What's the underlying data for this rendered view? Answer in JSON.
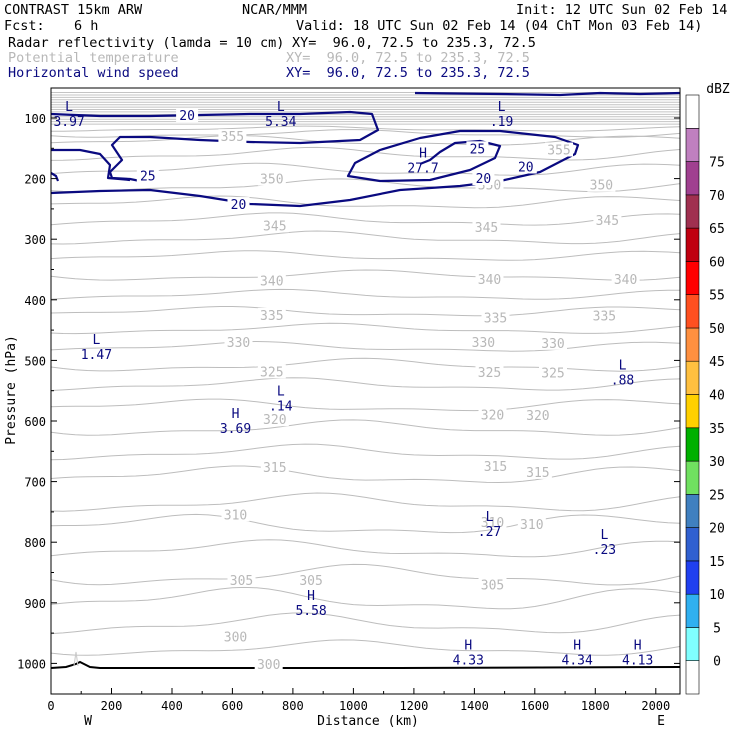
{
  "header": {
    "model": "CONTRAST 15km ARW",
    "center": "NCAR/MMM",
    "init": "Init: 12 UTC Sun 02 Feb 14",
    "fcst_label": "Fcst:",
    "fcst_value": "6 h",
    "valid": "Valid: 18 UTC Sun 02 Feb 14 (04 ChT Mon 03 Feb 14)",
    "fields": [
      {
        "name": "Radar reflectivity (lamda = 10 cm)",
        "xy": "XY=  96.0, 72.5 to 235.3, 72.5",
        "color": "#000000"
      },
      {
        "name": "Potential temperature",
        "xy": "XY=  96.0, 72.5 to 235.3, 72.5",
        "color": "#b8b8b8"
      },
      {
        "name": "Horizontal wind speed",
        "xy": "XY=  96.0, 72.5 to 235.3, 72.5",
        "color": "#0a0a80"
      }
    ]
  },
  "chart_data": {
    "type": "contour-cross-section",
    "xlabel": "Distance (km)",
    "ylabel": "Pressure (hPa)",
    "xlim": [
      0,
      2080
    ],
    "ylim_hpa": [
      1050,
      50
    ],
    "x_ticks": [
      0,
      200,
      400,
      600,
      800,
      1000,
      1200,
      1400,
      1600,
      1800,
      2000
    ],
    "y_ticks": [
      100,
      200,
      300,
      400,
      500,
      600,
      700,
      800,
      900,
      1000
    ],
    "x_end_labels": {
      "left": "W",
      "right": "E"
    },
    "theta_labels": [
      {
        "v": 355,
        "x": 600,
        "p": 130
      },
      {
        "v": 355,
        "x": 1680,
        "p": 152
      },
      {
        "v": 350,
        "x": 730,
        "p": 200
      },
      {
        "v": 350,
        "x": 1450,
        "p": 210
      },
      {
        "v": 350,
        "x": 1820,
        "p": 210
      },
      {
        "v": 345,
        "x": 740,
        "p": 277
      },
      {
        "v": 345,
        "x": 1440,
        "p": 280
      },
      {
        "v": 345,
        "x": 1840,
        "p": 268
      },
      {
        "v": 340,
        "x": 730,
        "p": 368
      },
      {
        "v": 340,
        "x": 1450,
        "p": 366
      },
      {
        "v": 340,
        "x": 1900,
        "p": 366
      },
      {
        "v": 335,
        "x": 730,
        "p": 425
      },
      {
        "v": 335,
        "x": 1470,
        "p": 429
      },
      {
        "v": 335,
        "x": 1830,
        "p": 426
      },
      {
        "v": 330,
        "x": 620,
        "p": 470
      },
      {
        "v": 330,
        "x": 1430,
        "p": 470
      },
      {
        "v": 330,
        "x": 1660,
        "p": 471
      },
      {
        "v": 325,
        "x": 730,
        "p": 518
      },
      {
        "v": 325,
        "x": 1450,
        "p": 519
      },
      {
        "v": 325,
        "x": 1660,
        "p": 520
      },
      {
        "v": 320,
        "x": 740,
        "p": 597
      },
      {
        "v": 320,
        "x": 1460,
        "p": 589
      },
      {
        "v": 320,
        "x": 1610,
        "p": 590
      },
      {
        "v": 315,
        "x": 740,
        "p": 676
      },
      {
        "v": 315,
        "x": 1470,
        "p": 674
      },
      {
        "v": 315,
        "x": 1610,
        "p": 684
      },
      {
        "v": 310,
        "x": 610,
        "p": 754
      },
      {
        "v": 310,
        "x": 1460,
        "p": 767
      },
      {
        "v": 310,
        "x": 1590,
        "p": 770
      },
      {
        "v": 305,
        "x": 630,
        "p": 862
      },
      {
        "v": 305,
        "x": 860,
        "p": 862
      },
      {
        "v": 305,
        "x": 1460,
        "p": 870
      },
      {
        "v": 300,
        "x": 610,
        "p": 956
      },
      {
        "v": 300,
        "x": 720,
        "p": 1001
      }
    ],
    "wind_labels": [
      {
        "v": 20,
        "x": 450,
        "p": 95
      },
      {
        "v": 25,
        "x": 1410,
        "p": 150
      },
      {
        "v": 20,
        "x": 1570,
        "p": 180
      },
      {
        "v": 25,
        "x": 320,
        "p": 195
      },
      {
        "v": 20,
        "x": 1430,
        "p": 199
      },
      {
        "v": 20,
        "x": 620,
        "p": 242
      }
    ],
    "extrema": [
      {
        "type": "L",
        "value": "3.97",
        "x": 60,
        "p": 93
      },
      {
        "type": "L",
        "value": "5.34",
        "x": 760,
        "p": 93
      },
      {
        "type": "L",
        "value": ".19",
        "x": 1490,
        "p": 93
      },
      {
        "type": "H",
        "value": "27.7",
        "x": 1230,
        "p": 170
      },
      {
        "type": "L",
        "value": "1.47",
        "x": 150,
        "p": 478
      },
      {
        "type": "L",
        "value": ".88",
        "x": 1890,
        "p": 520
      },
      {
        "type": "L",
        "value": ".14",
        "x": 760,
        "p": 563
      },
      {
        "type": "H",
        "value": "3.69",
        "x": 610,
        "p": 600
      },
      {
        "type": "L",
        "value": ".27",
        "x": 1450,
        "p": 770
      },
      {
        "type": "L",
        "value": ".23",
        "x": 1830,
        "p": 800
      },
      {
        "type": "H",
        "value": "5.58",
        "x": 860,
        "p": 900
      },
      {
        "type": "H",
        "value": "4.33",
        "x": 1380,
        "p": 982
      },
      {
        "type": "H",
        "value": "4.34",
        "x": 1740,
        "p": 982
      },
      {
        "type": "H",
        "value": "4.13",
        "x": 1940,
        "p": 982
      }
    ],
    "colorbar": {
      "unit": "dBZ",
      "levels": [
        0,
        5,
        10,
        15,
        20,
        25,
        30,
        35,
        40,
        45,
        50,
        55,
        60,
        65,
        70,
        75
      ],
      "colors": [
        "#ffffff",
        "#80ffff",
        "#30b0f0",
        "#2040f0",
        "#3060d0",
        "#4080c0",
        "#70e060",
        "#00b000",
        "#ffd000",
        "#ffc040",
        "#ff9040",
        "#ff5020",
        "#ff0000",
        "#c00010",
        "#a03050",
        "#a04090",
        "#c080c0",
        "#ffffff"
      ]
    }
  }
}
